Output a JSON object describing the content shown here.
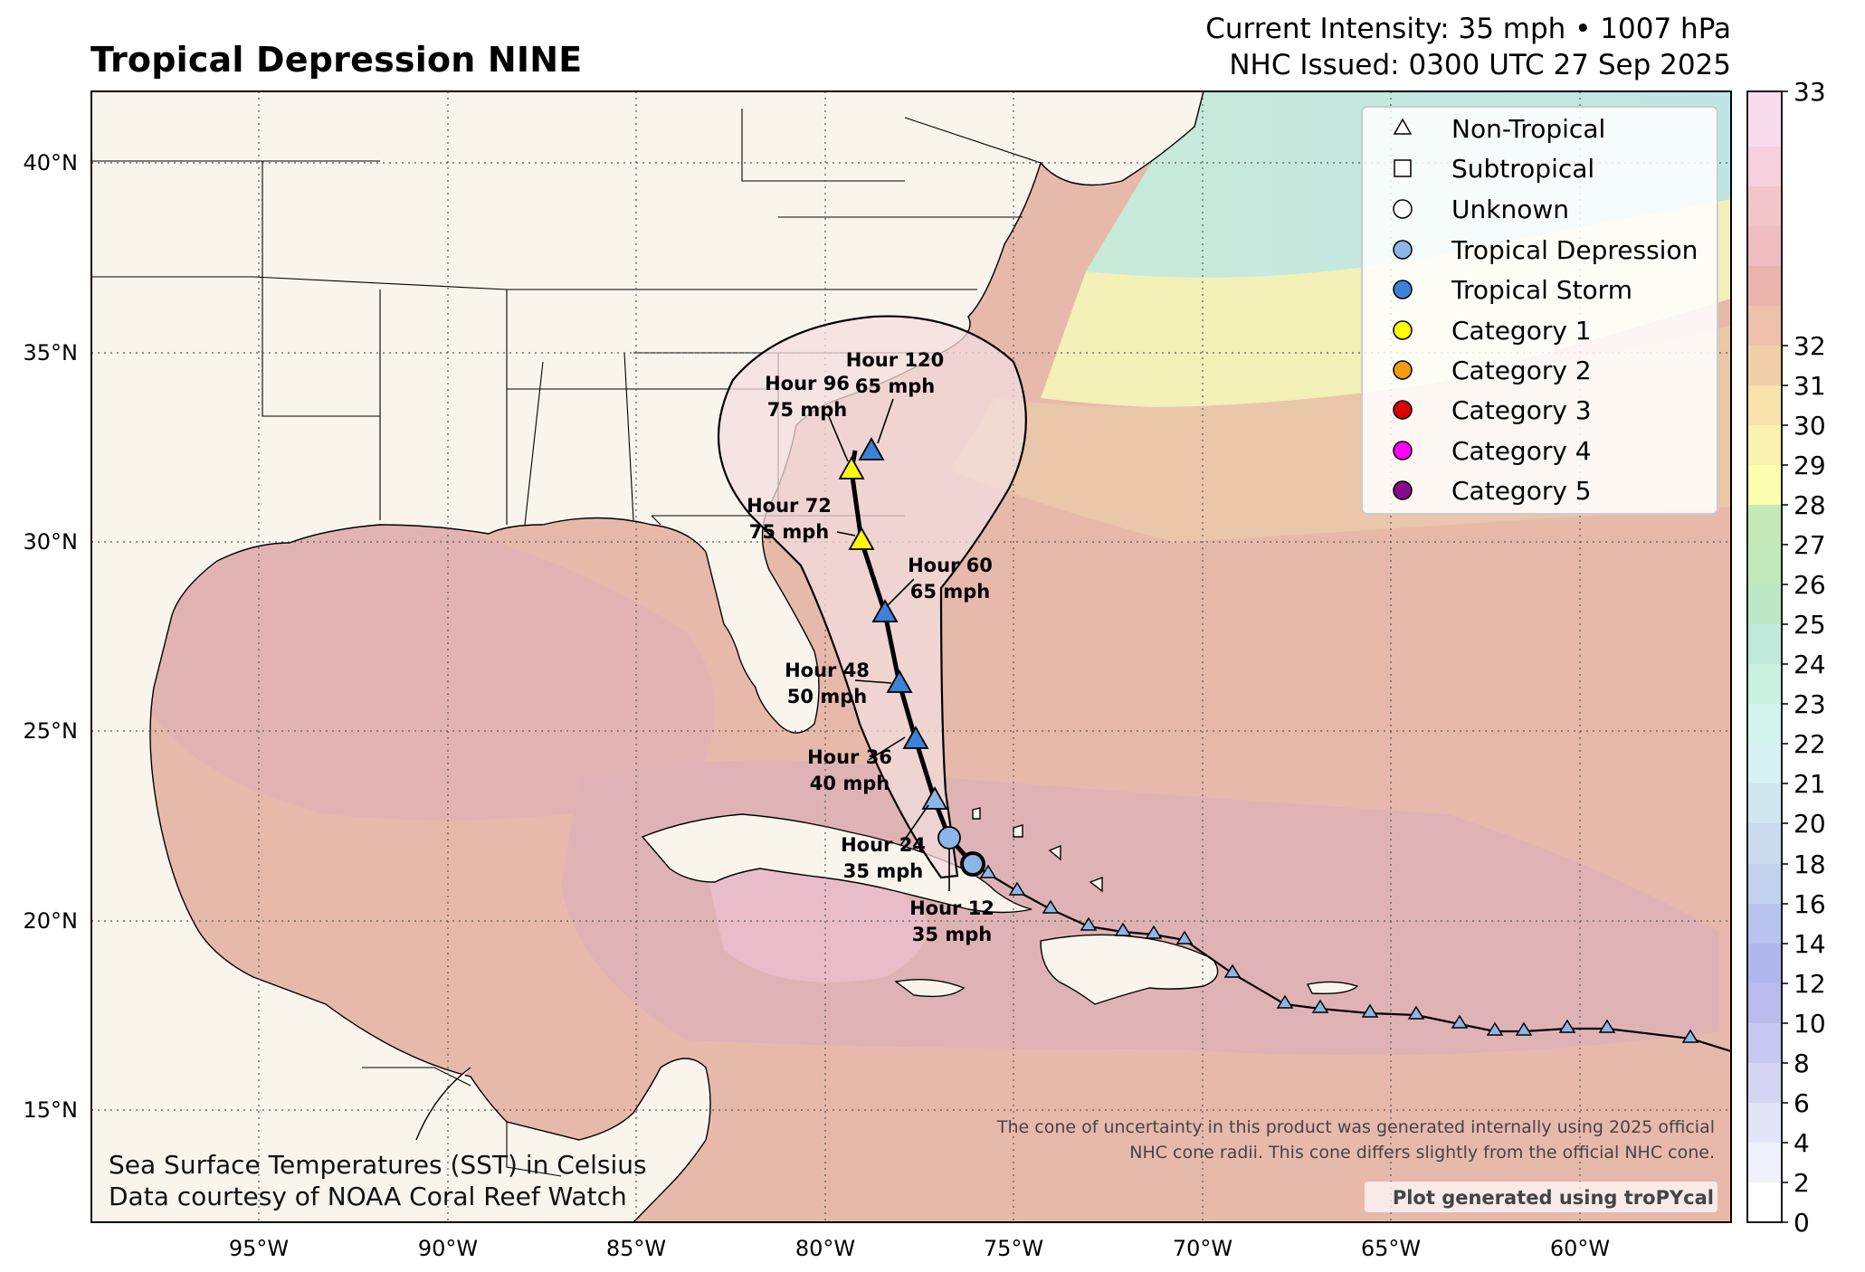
{
  "header": {
    "title": "Tropical Depression NINE",
    "intensity": "Current Intensity: 35 mph • 1007 hPa",
    "issued": "NHC Issued: 0300 UTC 27 Sep 2025"
  },
  "legend": {
    "items": [
      {
        "label": "Non-Tropical",
        "marker": "triangle-icon",
        "color": "#ffffff"
      },
      {
        "label": "Subtropical",
        "marker": "square-icon",
        "color": "#ffffff"
      },
      {
        "label": "Unknown",
        "marker": "circle-icon",
        "color": "#ffffff"
      },
      {
        "label": "Tropical Depression",
        "marker": "circle-icon",
        "color": "#8db6e8"
      },
      {
        "label": "Tropical Storm",
        "marker": "circle-icon",
        "color": "#3c82d8"
      },
      {
        "label": "Category 1",
        "marker": "circle-icon",
        "color": "#ffff00"
      },
      {
        "label": "Category 2",
        "marker": "circle-icon",
        "color": "#f39a12"
      },
      {
        "label": "Category 3",
        "marker": "circle-icon",
        "color": "#dd0000"
      },
      {
        "label": "Category 4",
        "marker": "circle-icon",
        "color": "#ff00ff"
      },
      {
        "label": "Category 5",
        "marker": "circle-icon",
        "color": "#8b0a8b"
      }
    ]
  },
  "axes": {
    "lat_ticks": [
      "40°N",
      "35°N",
      "30°N",
      "25°N",
      "20°N",
      "15°N"
    ],
    "lon_ticks": [
      "95°W",
      "90°W",
      "85°W",
      "80°W",
      "75°W",
      "70°W",
      "65°W",
      "60°W"
    ]
  },
  "colorbar": {
    "ticks": [
      "0",
      "2",
      "4",
      "6",
      "8",
      "10",
      "12",
      "14",
      "16",
      "18",
      "20",
      "21",
      "22",
      "23",
      "24",
      "25",
      "26",
      "27",
      "28",
      "29",
      "30",
      "31",
      "32",
      "33"
    ]
  },
  "forecast_labels": [
    {
      "hour": "Hour 12",
      "wind": "35 mph"
    },
    {
      "hour": "Hour 24",
      "wind": "35 mph"
    },
    {
      "hour": "Hour 36",
      "wind": "40 mph"
    },
    {
      "hour": "Hour 48",
      "wind": "50 mph"
    },
    {
      "hour": "Hour 60",
      "wind": "65 mph"
    },
    {
      "hour": "Hour 72",
      "wind": "75 mph"
    },
    {
      "hour": "Hour 96",
      "wind": "75 mph"
    },
    {
      "hour": "Hour 120",
      "wind": "65 mph"
    }
  ],
  "notes": {
    "cone_line1": "The cone of uncertainty in this product was generated internally using 2025 official",
    "cone_line2": "NHC cone radii. This cone differs slightly from the official NHC cone.",
    "credit": "Plot generated using troPYcal",
    "sst_line1": "Sea Surface Temperatures (SST) in Celsius",
    "sst_line2": "Data courtesy of NOAA Coral Reef Watch"
  },
  "colors": {
    "land": "#faf5ec",
    "sst_warm": "#e6b7a8",
    "sst_hot": "#deb0b4",
    "sst_cool": "#c8ecd8",
    "sst_yellow": "#f6f3b9",
    "cone": "#f3dede"
  }
}
